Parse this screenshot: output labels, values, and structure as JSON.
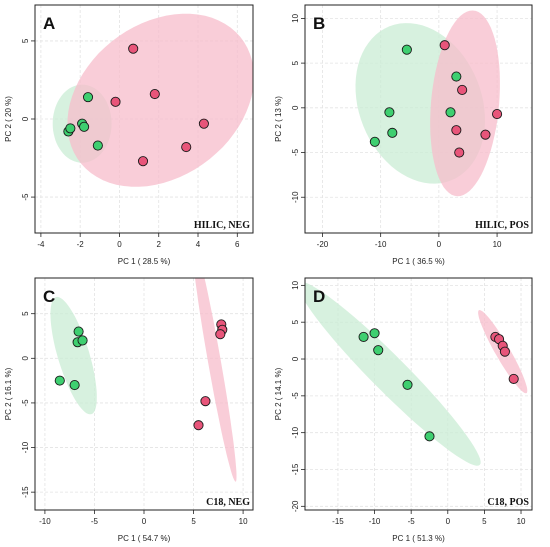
{
  "colors": {
    "group_green_fill": "#3ecf70",
    "group_green_ellipse": "#c9ecd4",
    "group_red_fill": "#e8557a",
    "group_red_ellipse": "#f7bccb",
    "grid": "#e3e3e3",
    "frame": "#222222"
  },
  "chart_data": [
    {
      "type": "scatter",
      "panel": "A",
      "xlabel": "PC 1 ( 28.5 %)",
      "ylabel": "PC 2 ( 20 %)",
      "annotation": "HILIC, NEG",
      "xlim": [
        -4.3,
        6.8
      ],
      "ylim": [
        -7.3,
        7.3
      ],
      "xticks": [
        -4,
        -2,
        0,
        2,
        4,
        6
      ],
      "yticks": [
        -5,
        0,
        5
      ],
      "grid": true,
      "series": [
        {
          "color": "green",
          "points": [
            [
              -2.6,
              -0.8
            ],
            [
              -2.5,
              -0.6
            ],
            [
              -1.9,
              -0.3
            ],
            [
              -1.8,
              -0.5
            ],
            [
              -1.6,
              1.4
            ],
            [
              -1.1,
              -1.7
            ]
          ],
          "ellipse": {
            "center": [
              -1.9,
              -0.3
            ],
            "rx": 1.5,
            "ry": 2.5,
            "angle_deg": 0
          }
        },
        {
          "color": "red",
          "points": [
            [
              0.7,
              4.5
            ],
            [
              1.8,
              1.6
            ],
            [
              -0.2,
              1.1
            ],
            [
              1.2,
              -2.7
            ],
            [
              3.4,
              -1.8
            ],
            [
              4.3,
              -0.3
            ]
          ],
          "ellipse": {
            "center": [
              2.1,
              1.2
            ],
            "rx": 4.3,
            "ry": 5.9,
            "angle_deg": -30
          }
        }
      ]
    },
    {
      "type": "scatter",
      "panel": "B",
      "xlabel": "PC 1 ( 36.5 %)",
      "ylabel": "PC 2 ( 13 %)",
      "annotation": "HILIC, POS",
      "xlim": [
        -23,
        16
      ],
      "ylim": [
        -14,
        11.5
      ],
      "xticks": [
        -20,
        -10,
        0,
        10
      ],
      "yticks": [
        -10,
        -5,
        0,
        5,
        10
      ],
      "grid": true,
      "series": [
        {
          "color": "green",
          "points": [
            [
              -11,
              -3.8
            ],
            [
              -8.5,
              -0.5
            ],
            [
              -8,
              -2.8
            ],
            [
              -5.5,
              6.5
            ],
            [
              2,
              -0.5
            ],
            [
              3,
              3.5
            ]
          ],
          "ellipse": {
            "center": [
              -3.2,
              0.5
            ],
            "rx": 11.5,
            "ry": 8.5,
            "angle_deg": -22
          }
        },
        {
          "color": "red",
          "points": [
            [
              1,
              7
            ],
            [
              4,
              2
            ],
            [
              3,
              -2.5
            ],
            [
              3.5,
              -5
            ],
            [
              8,
              -3
            ],
            [
              10,
              -0.7
            ]
          ],
          "ellipse": {
            "center": [
              4.5,
              0.5
            ],
            "rx": 10.5,
            "ry": 5.8,
            "angle_deg": 80
          }
        }
      ]
    },
    {
      "type": "scatter",
      "panel": "C",
      "xlabel": "PC 1 ( 54.7 %)",
      "ylabel": "PC 2 ( 16.1 %)",
      "annotation": "C18, NEG",
      "xlim": [
        -11,
        11
      ],
      "ylim": [
        -17,
        9
      ],
      "xticks": [
        -10,
        -5,
        0,
        5,
        10
      ],
      "yticks": [
        -15,
        -10,
        -5,
        0,
        5
      ],
      "grid": true,
      "series": [
        {
          "color": "green",
          "points": [
            [
              -8.5,
              -2.5
            ],
            [
              -7,
              -3
            ],
            [
              -6.6,
              3
            ],
            [
              -6.7,
              1.8
            ],
            [
              -6.2,
              2
            ]
          ],
          "ellipse": {
            "center": [
              -7.1,
              0.3
            ],
            "rx": 6.8,
            "ry": 1.6,
            "angle_deg": -75
          }
        },
        {
          "color": "red",
          "points": [
            [
              7.8,
              3.8
            ],
            [
              7.9,
              3.2
            ],
            [
              7.7,
              2.7
            ],
            [
              6.2,
              -4.8
            ],
            [
              5.5,
              -7.5
            ]
          ],
          "ellipse": {
            "center": [
              7.1,
              -0.3
            ],
            "rx": 13.7,
            "ry": 0.65,
            "angle_deg": -81
          }
        }
      ]
    },
    {
      "type": "scatter",
      "panel": "D",
      "xlabel": "PC 1 ( 51.3 %)",
      "ylabel": "PC 2 ( 14.1 %)",
      "annotation": "C18, POS",
      "xlim": [
        -19.5,
        11.5
      ],
      "ylim": [
        -20.5,
        11
      ],
      "xticks": [
        -15,
        -10,
        -5,
        0,
        5,
        10
      ],
      "yticks": [
        -20,
        -15,
        -10,
        -5,
        0,
        5,
        10
      ],
      "grid": true,
      "series": [
        {
          "color": "green",
          "points": [
            [
              -11.5,
              3
            ],
            [
              -10,
              3.5
            ],
            [
              -9.5,
              1.2
            ],
            [
              -5.5,
              -3.5
            ],
            [
              -2.5,
              -10.5
            ]
          ],
          "ellipse": {
            "center": [
              -8,
              -2
            ],
            "rx": 17.5,
            "ry": 2.4,
            "angle_deg": -45
          }
        },
        {
          "color": "red",
          "points": [
            [
              6.5,
              3
            ],
            [
              7,
              2.7
            ],
            [
              7.5,
              1.8
            ],
            [
              7.8,
              1
            ],
            [
              9,
              -2.7
            ]
          ],
          "ellipse": {
            "center": [
              7.5,
              1
            ],
            "rx": 6.5,
            "ry": 1,
            "angle_deg": -60
          }
        }
      ]
    }
  ]
}
